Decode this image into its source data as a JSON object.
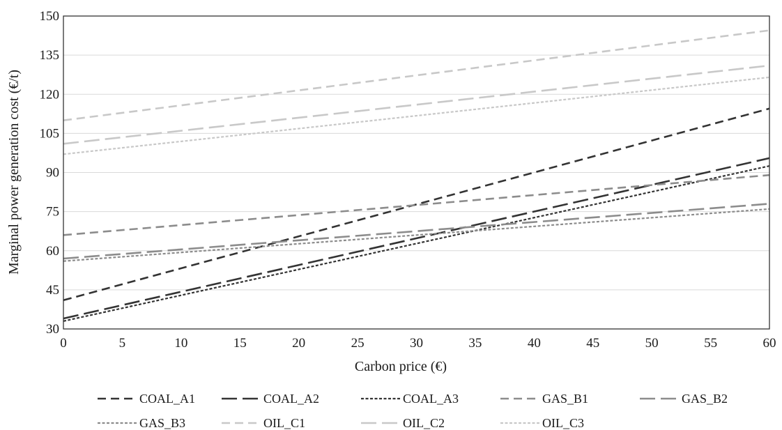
{
  "chart_data": {
    "type": "line",
    "title": "",
    "xlabel": "Carbon price  (€)",
    "ylabel": "Marginal power generation cost  (€/t)",
    "xlim": [
      0,
      60
    ],
    "ylim": [
      30,
      150
    ],
    "x_ticks": [
      "0",
      "5",
      "10",
      "15",
      "20",
      "25",
      "30",
      "35",
      "40",
      "45",
      "50",
      "55",
      "60"
    ],
    "y_ticks": [
      "30",
      "45",
      "60",
      "75",
      "90",
      "105",
      "120",
      "135",
      "150"
    ],
    "grid": "horizontal",
    "legend_position": "bottom",
    "series": [
      {
        "name": "COAL_A1",
        "color": "#333333",
        "dash": "dash",
        "x": [
          0,
          60
        ],
        "y": [
          41,
          114.5
        ]
      },
      {
        "name": "COAL_A2",
        "color": "#333333",
        "dash": "long-dash",
        "x": [
          0,
          60
        ],
        "y": [
          34,
          95.5
        ]
      },
      {
        "name": "COAL_A3",
        "color": "#333333",
        "dash": "dot",
        "x": [
          0,
          60
        ],
        "y": [
          33,
          92.5
        ]
      },
      {
        "name": "GAS_B1",
        "color": "#8c8c8c",
        "dash": "dash",
        "x": [
          0,
          60
        ],
        "y": [
          66,
          89
        ]
      },
      {
        "name": "GAS_B2",
        "color": "#8c8c8c",
        "dash": "long-dash",
        "x": [
          0,
          60
        ],
        "y": [
          57,
          78
        ]
      },
      {
        "name": "GAS_B3",
        "color": "#8c8c8c",
        "dash": "dot",
        "x": [
          0,
          60
        ],
        "y": [
          56,
          76
        ]
      },
      {
        "name": "OIL_C1",
        "color": "#c8c8c8",
        "dash": "dash",
        "x": [
          0,
          60
        ],
        "y": [
          110,
          144.5
        ]
      },
      {
        "name": "OIL_C2",
        "color": "#c8c8c8",
        "dash": "long-dash",
        "x": [
          0,
          60
        ],
        "y": [
          101,
          131
        ]
      },
      {
        "name": "OIL_C3",
        "color": "#c8c8c8",
        "dash": "dot",
        "x": [
          0,
          60
        ],
        "y": [
          97,
          126.5
        ]
      }
    ]
  }
}
